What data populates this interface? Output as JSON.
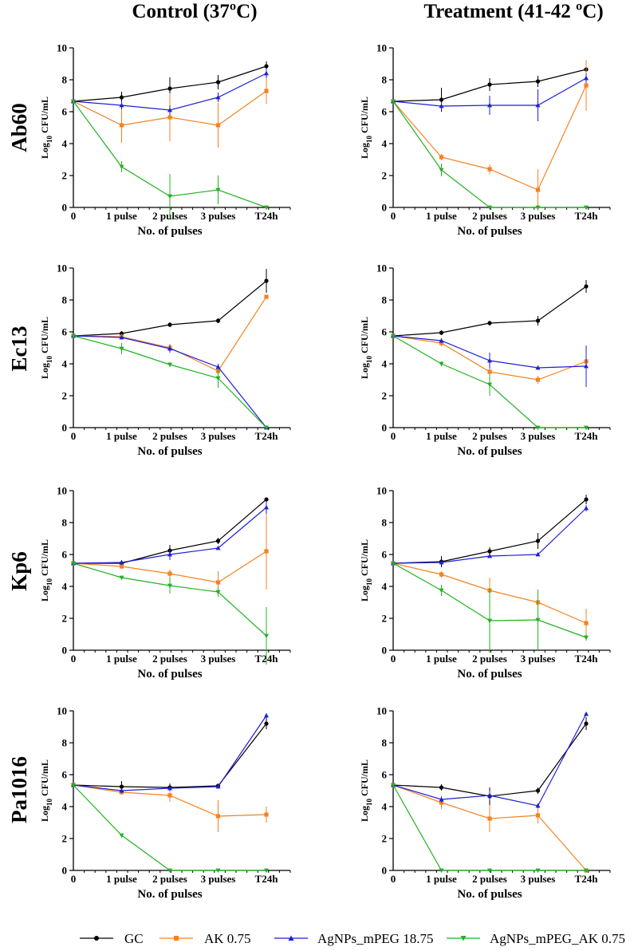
{
  "column_titles": [
    "Control (37ºC)",
    "Treatment (41-42 ºC)"
  ],
  "row_labels": [
    "Ab60",
    "Ec13",
    "Kp6",
    "Pa1016"
  ],
  "colors": {
    "GC": "#000000",
    "AK": "#f58220",
    "AgNPs": "#1f1fd6",
    "Combo": "#22b222"
  },
  "legend": [
    {
      "label": "GC",
      "color": "#000000",
      "marker": "circle"
    },
    {
      "label": "AK 0.75",
      "color": "#f58220",
      "marker": "square"
    },
    {
      "label": "AgNPs_mPEG 18.75",
      "color": "#1f1fd6",
      "marker": "triangle-up"
    },
    {
      "label": "AgNPs_mPEG_AK 0.75",
      "color": "#22b222",
      "marker": "triangle-down"
    }
  ],
  "chart_data": [
    {
      "type": "line",
      "row": "Ab60",
      "condition": "Control (37ºC)",
      "categories": [
        "0",
        "1 pulse",
        "2 pulses",
        "3 pulses",
        "T24h"
      ],
      "xlabel": "No. of pulses",
      "ylabel": "Log10 CFU/mL",
      "ylim": [
        0,
        10
      ],
      "yticks": [
        0,
        2,
        4,
        6,
        8,
        10
      ],
      "series": [
        {
          "name": "GC",
          "values": [
            6.65,
            6.9,
            7.45,
            7.85,
            8.85
          ],
          "err": [
            0,
            0.35,
            0.7,
            0.45,
            0.3
          ]
        },
        {
          "name": "AK 0.75",
          "values": [
            6.65,
            5.15,
            5.65,
            5.15,
            7.3
          ],
          "err": [
            0,
            1.1,
            1.5,
            1.4,
            0.8
          ]
        },
        {
          "name": "AgNPs_mPEG 18.75",
          "values": [
            6.65,
            6.4,
            6.1,
            6.9,
            8.4
          ],
          "err": [
            0,
            0.25,
            0.3,
            0.3,
            0.3
          ]
        },
        {
          "name": "AgNPs_mPEG_AK 0.75",
          "values": [
            6.65,
            2.55,
            0.7,
            1.1,
            0
          ],
          "err": [
            0,
            0.35,
            1.4,
            0.9,
            0
          ]
        }
      ]
    },
    {
      "type": "line",
      "row": "Ab60",
      "condition": "Treatment (41-42 ºC)",
      "categories": [
        "0",
        "1 pulse",
        "2 pulses",
        "3 pulses",
        "T24h"
      ],
      "xlabel": "No. of pulses",
      "ylabel": "Log10 CFU/mL",
      "ylim": [
        0,
        10
      ],
      "yticks": [
        0,
        2,
        4,
        6,
        8,
        10
      ],
      "series": [
        {
          "name": "GC",
          "values": [
            6.65,
            6.75,
            7.7,
            7.9,
            8.65
          ],
          "err": [
            0,
            0.75,
            0.4,
            0.35,
            0.25
          ]
        },
        {
          "name": "AK 0.75",
          "values": [
            6.65,
            3.15,
            2.4,
            1.1,
            7.65
          ],
          "err": [
            0,
            0.2,
            0.3,
            1.3,
            1.6
          ]
        },
        {
          "name": "AgNPs_mPEG 18.75",
          "values": [
            6.65,
            6.35,
            6.4,
            6.4,
            8.1
          ],
          "err": [
            0,
            0.25,
            0.6,
            1.0,
            0.3
          ]
        },
        {
          "name": "AgNPs_mPEG_AK 0.75",
          "values": [
            6.65,
            2.35,
            0,
            0,
            0
          ],
          "err": [
            0,
            0.4,
            0,
            0,
            0
          ]
        }
      ]
    },
    {
      "type": "line",
      "row": "Ec13",
      "condition": "Control (37ºC)",
      "categories": [
        "0",
        "1 pulse",
        "2 pulses",
        "3 pulses",
        "T24h"
      ],
      "xlabel": "No. of pulses",
      "ylabel": "Log10 CFU/mL",
      "ylim": [
        0,
        10
      ],
      "yticks": [
        0,
        2,
        4,
        6,
        8,
        10
      ],
      "series": [
        {
          "name": "GC",
          "values": [
            5.75,
            5.9,
            6.45,
            6.7,
            9.2
          ],
          "err": [
            0,
            0.15,
            0.15,
            0.15,
            0.75
          ]
        },
        {
          "name": "AK 0.75",
          "values": [
            5.75,
            5.7,
            5.0,
            3.55,
            8.2
          ],
          "err": [
            0,
            0.15,
            0.25,
            0.2,
            0.1
          ]
        },
        {
          "name": "AgNPs_mPEG 18.75",
          "values": [
            5.75,
            5.65,
            4.95,
            3.8,
            0
          ],
          "err": [
            0,
            0.1,
            0.25,
            0.2,
            0
          ]
        },
        {
          "name": "AgNPs_mPEG_AK 0.75",
          "values": [
            5.75,
            4.95,
            3.95,
            3.1,
            0
          ],
          "err": [
            0,
            0.35,
            0.15,
            0.6,
            0
          ]
        }
      ]
    },
    {
      "type": "line",
      "row": "Ec13",
      "condition": "Treatment (41-42 ºC)",
      "categories": [
        "0",
        "1 pulse",
        "2 pulses",
        "3 pulses",
        "T24h"
      ],
      "xlabel": "No. of pulses",
      "ylabel": "Log10 CFU/mL",
      "ylim": [
        0,
        10
      ],
      "yticks": [
        0,
        2,
        4,
        6,
        8,
        10
      ],
      "series": [
        {
          "name": "GC",
          "values": [
            5.75,
            5.95,
            6.55,
            6.7,
            8.85
          ],
          "err": [
            0,
            0.15,
            0.15,
            0.3,
            0.4
          ]
        },
        {
          "name": "AK 0.75",
          "values": [
            5.75,
            5.3,
            3.5,
            3.0,
            4.15
          ],
          "err": [
            0,
            0.2,
            0.35,
            0.25,
            0.4
          ]
        },
        {
          "name": "AgNPs_mPEG 18.75",
          "values": [
            5.75,
            5.45,
            4.2,
            3.75,
            3.85
          ],
          "err": [
            0,
            0.15,
            0.5,
            0.1,
            1.3
          ]
        },
        {
          "name": "AgNPs_mPEG_AK 0.75",
          "values": [
            5.75,
            4.0,
            2.7,
            0,
            0
          ],
          "err": [
            0,
            0.15,
            0.7,
            0,
            0
          ]
        }
      ]
    },
    {
      "type": "line",
      "row": "Kp6",
      "condition": "Control (37ºC)",
      "categories": [
        "0",
        "1 pulse",
        "2 pulses",
        "3 pulses",
        "T24h"
      ],
      "xlabel": "No. of pulses",
      "ylabel": "Log10 CFU/mL",
      "ylim": [
        0,
        10
      ],
      "yticks": [
        0,
        2,
        4,
        6,
        8,
        10
      ],
      "series": [
        {
          "name": "GC",
          "values": [
            5.45,
            5.45,
            6.25,
            6.85,
            9.45
          ],
          "err": [
            0,
            0.15,
            0.35,
            0.2,
            0.1
          ]
        },
        {
          "name": "AK 0.75",
          "values": [
            5.45,
            5.25,
            4.8,
            4.25,
            6.2
          ],
          "err": [
            0,
            0.15,
            0.25,
            0.7,
            2.4
          ]
        },
        {
          "name": "AgNPs_mPEG 18.75",
          "values": [
            5.45,
            5.5,
            6.0,
            6.4,
            8.95
          ],
          "err": [
            0,
            0.15,
            0.35,
            0.1,
            0.4
          ]
        },
        {
          "name": "AgNPs_mPEG_AK 0.75",
          "values": [
            5.45,
            4.55,
            4.05,
            3.65,
            0.9
          ],
          "err": [
            0,
            0.1,
            0.5,
            0.3,
            1.8
          ]
        }
      ]
    },
    {
      "type": "line",
      "row": "Kp6",
      "condition": "Treatment (41-42 ºC)",
      "categories": [
        "0",
        "1 pulse",
        "2 pulses",
        "3 pulses",
        "T24h"
      ],
      "xlabel": "No. of pulses",
      "ylabel": "Log10 CFU/mL",
      "ylim": [
        0,
        10
      ],
      "yticks": [
        0,
        2,
        4,
        6,
        8,
        10
      ],
      "series": [
        {
          "name": "GC",
          "values": [
            5.45,
            5.55,
            6.2,
            6.85,
            9.45
          ],
          "err": [
            0,
            0.35,
            0.25,
            0.5,
            0.3
          ]
        },
        {
          "name": "AK 0.75",
          "values": [
            5.45,
            4.75,
            3.75,
            3.0,
            1.7
          ],
          "err": [
            0,
            0.2,
            0.8,
            0.8,
            0.9
          ]
        },
        {
          "name": "AgNPs_mPEG 18.75",
          "values": [
            5.45,
            5.5,
            5.9,
            6.0,
            8.9
          ],
          "err": [
            0,
            0.1,
            0.1,
            0.1,
            0.2
          ]
        },
        {
          "name": "AgNPs_mPEG_AK 0.75",
          "values": [
            5.45,
            3.75,
            1.85,
            1.9,
            0.8
          ],
          "err": [
            0,
            0.35,
            2.0,
            1.9,
            0.2
          ]
        }
      ]
    },
    {
      "type": "line",
      "row": "Pa1016",
      "condition": "Control (37ºC)",
      "categories": [
        "0",
        "1 pulse",
        "2 pulses",
        "3 pulses",
        "T24h"
      ],
      "xlabel": "No. of pulses",
      "ylabel": "Log10 CFU/mL",
      "ylim": [
        0,
        10
      ],
      "yticks": [
        0,
        2,
        4,
        6,
        8,
        10
      ],
      "series": [
        {
          "name": "GC",
          "values": [
            5.35,
            5.25,
            5.2,
            5.3,
            9.2
          ],
          "err": [
            0,
            0.35,
            0.25,
            0.1,
            0.35
          ]
        },
        {
          "name": "AK 0.75",
          "values": [
            5.35,
            4.9,
            4.7,
            3.4,
            3.5
          ],
          "err": [
            0,
            0.15,
            0.4,
            1.0,
            0.5
          ]
        },
        {
          "name": "AgNPs_mPEG 18.75",
          "values": [
            5.35,
            5.0,
            5.15,
            5.25,
            9.7
          ],
          "err": [
            0,
            0.15,
            0.15,
            0.1,
            0.15
          ]
        },
        {
          "name": "AgNPs_mPEG_AK 0.75",
          "values": [
            5.35,
            2.2,
            0,
            0,
            0
          ],
          "err": [
            0,
            0.1,
            0,
            0,
            0
          ]
        }
      ]
    },
    {
      "type": "line",
      "row": "Pa1016",
      "condition": "Treatment (41-42 ºC)",
      "categories": [
        "0",
        "1 pulse",
        "2 pulses",
        "3 pulses",
        "T24h"
      ],
      "xlabel": "No. of pulses",
      "ylabel": "Log10 CFU/mL",
      "ylim": [
        0,
        10
      ],
      "yticks": [
        0,
        2,
        4,
        6,
        8,
        10
      ],
      "series": [
        {
          "name": "GC",
          "values": [
            5.35,
            5.2,
            4.65,
            5.0,
            9.2
          ],
          "err": [
            0,
            0.2,
            0.55,
            0.2,
            0.4
          ]
        },
        {
          "name": "AK 0.75",
          "values": [
            5.35,
            4.25,
            3.25,
            3.45,
            0
          ],
          "err": [
            0,
            0.4,
            0.85,
            0.5,
            0
          ]
        },
        {
          "name": "AgNPs_mPEG 18.75",
          "values": [
            5.35,
            4.45,
            4.7,
            4.05,
            9.8
          ],
          "err": [
            0,
            0.2,
            0.3,
            0.15,
            0.1
          ]
        },
        {
          "name": "AgNPs_mPEG_AK 0.75",
          "values": [
            5.35,
            0,
            0,
            0,
            0
          ],
          "err": [
            0,
            0,
            0,
            0,
            0
          ]
        }
      ]
    }
  ]
}
